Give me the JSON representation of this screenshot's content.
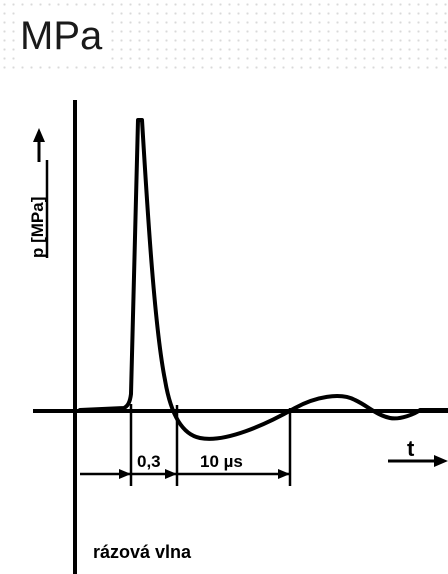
{
  "slide": {
    "title": "MPa"
  },
  "diagram": {
    "y_axis_label": "p [MPa]",
    "x_axis_label": "t",
    "interval_1_label": "0,3",
    "interval_2_label": "10 µs",
    "caption": "rázová vlna"
  },
  "colors": {
    "ink": "#000000",
    "background": "#ffffff",
    "header_dots": "#d9d9d9"
  }
}
